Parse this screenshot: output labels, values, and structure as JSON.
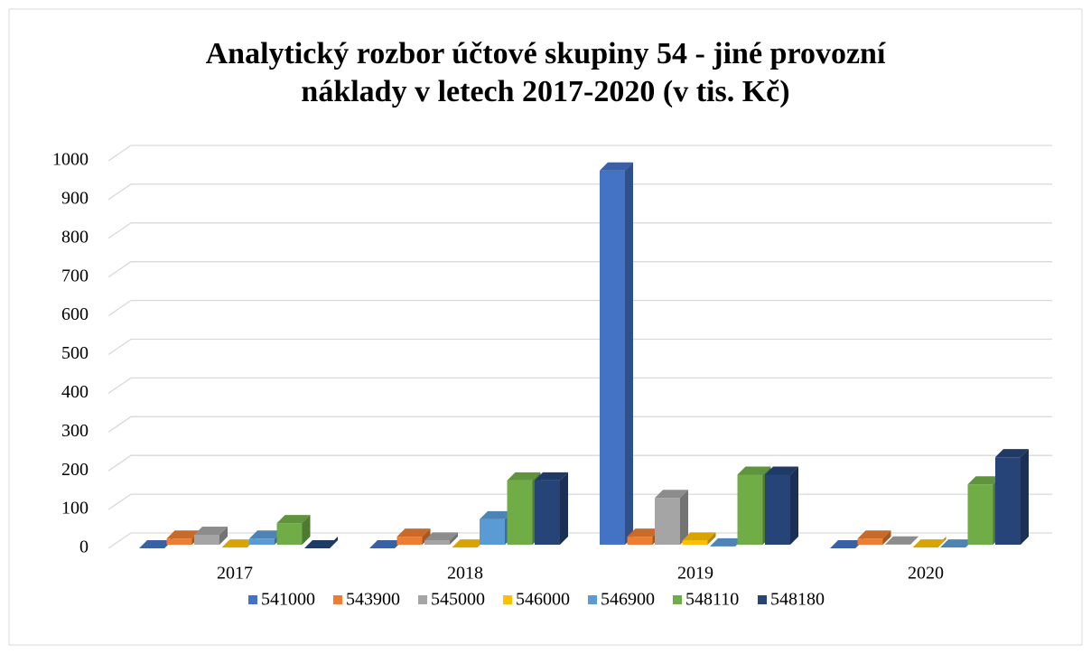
{
  "chart_data": {
    "type": "bar3d",
    "title": [
      "Analytický rozbor účtové skupiny 54 - jiné provozní",
      "náklady v letech 2017-2020 (v tis. Kč)"
    ],
    "categories": [
      "2017",
      "2018",
      "2019",
      "2020"
    ],
    "series": [
      {
        "name": "541000",
        "color": "#4472c4",
        "values": [
          0,
          0,
          975,
          0
        ]
      },
      {
        "name": "543900",
        "color": "#ed7d31",
        "values": [
          25,
          30,
          30,
          25
        ]
      },
      {
        "name": "545000",
        "color": "#a5a5a5",
        "values": [
          35,
          20,
          130,
          10
        ]
      },
      {
        "name": "546000",
        "color": "#ffc000",
        "values": [
          2,
          2,
          20,
          2
        ]
      },
      {
        "name": "546900",
        "color": "#5b9bd5",
        "values": [
          25,
          75,
          5,
          2
        ]
      },
      {
        "name": "548110",
        "color": "#70ad47",
        "values": [
          65,
          175,
          190,
          165
        ]
      },
      {
        "name": "548180",
        "color": "#264478",
        "values": [
          0,
          175,
          190,
          235
        ]
      }
    ],
    "ylim": [
      0,
      1000
    ],
    "yticks": [
      0,
      100,
      200,
      300,
      400,
      500,
      600,
      700,
      800,
      900,
      1000
    ],
    "grid": true,
    "legend": "bottom"
  }
}
